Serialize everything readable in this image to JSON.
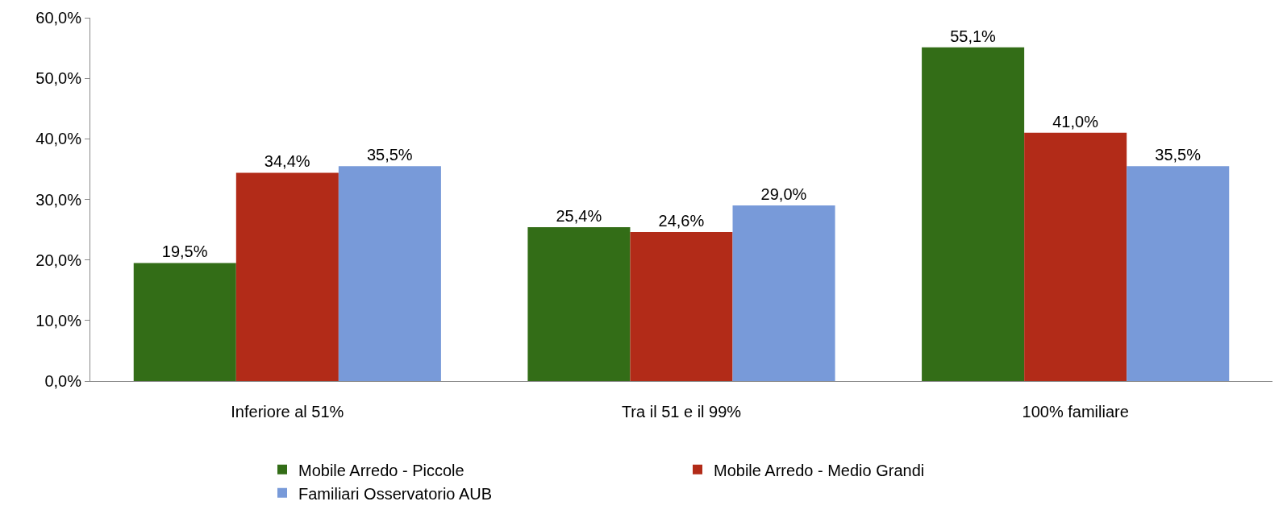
{
  "chart_data": {
    "type": "bar",
    "categories": [
      "Inferiore al 51%",
      "Tra il 51 e il 99%",
      "100% familiare"
    ],
    "series": [
      {
        "name": "Mobile Arredo - Piccole",
        "color": "#336d17",
        "values": [
          19.5,
          25.4,
          55.1
        ],
        "value_labels": [
          "19,5%",
          "25,4%",
          "55,1%"
        ]
      },
      {
        "name": "Mobile Arredo - Medio Grandi",
        "color": "#b22b18",
        "values": [
          34.4,
          24.6,
          41.0
        ],
        "value_labels": [
          "34,4%",
          "24,6%",
          "41,0%"
        ]
      },
      {
        "name": "Familiari Osservatorio AUB",
        "color": "#789ad9",
        "values": [
          35.5,
          29.0,
          35.5
        ],
        "value_labels": [
          "35,5%",
          "29,0%",
          "35,5%"
        ]
      }
    ],
    "ylim": [
      0,
      60
    ],
    "yticks": [
      {
        "value": 0,
        "label": "0,0%"
      },
      {
        "value": 10,
        "label": "10,0%"
      },
      {
        "value": 20,
        "label": "20,0%"
      },
      {
        "value": 30,
        "label": "30,0%"
      },
      {
        "value": 40,
        "label": "40,0%"
      },
      {
        "value": 50,
        "label": "50,0%"
      },
      {
        "value": 60,
        "label": "60,0%"
      }
    ],
    "grid": false,
    "legend": "bottom"
  }
}
